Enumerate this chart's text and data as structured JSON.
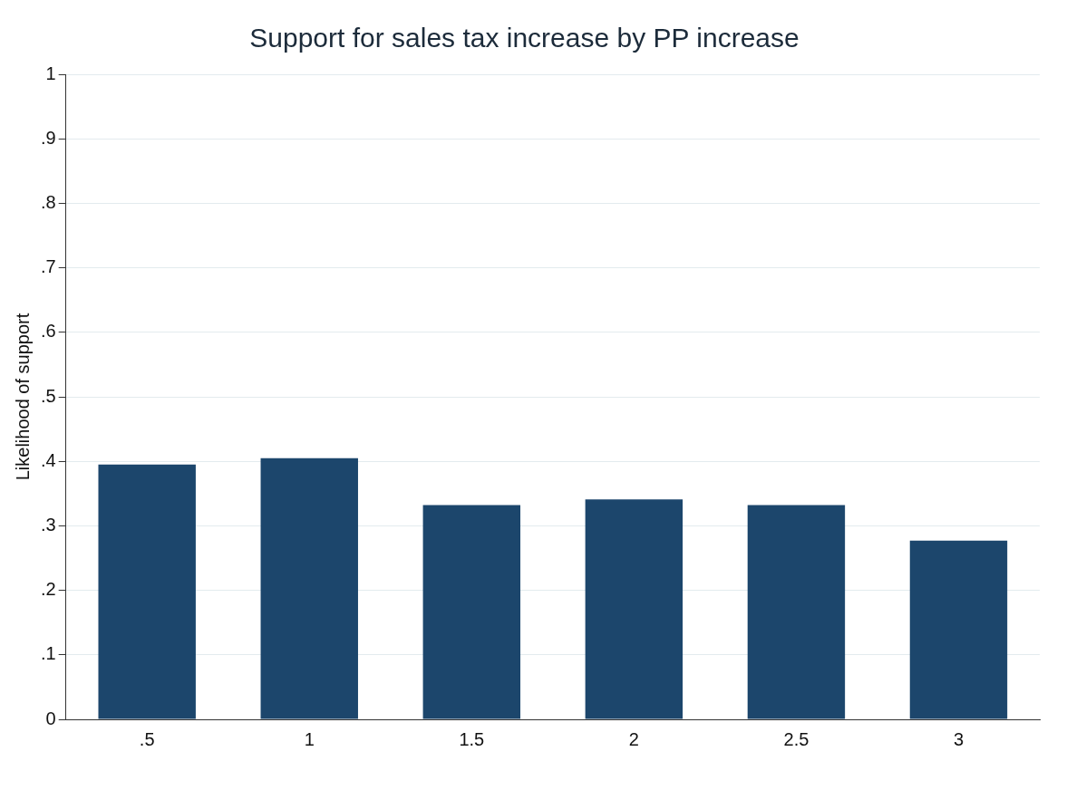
{
  "chart_data": {
    "type": "bar",
    "title": "Support for sales tax increase by PP increase",
    "ylabel": "Likelihood of support",
    "categories": [
      ".5",
      "1",
      "1.5",
      "2",
      "2.5",
      "3"
    ],
    "values": [
      0.395,
      0.405,
      0.332,
      0.341,
      0.332,
      0.277
    ],
    "color": "#1c466c",
    "ylim": [
      0,
      1
    ],
    "yticks": [
      0,
      {
        "value": 0.1,
        "label": ".1"
      },
      {
        "value": 0.2,
        "label": ".2"
      },
      {
        "value": 0.3,
        "label": ".3"
      },
      {
        "value": 0.4,
        "label": ".4"
      },
      {
        "value": 0.5,
        "label": ".5"
      },
      {
        "value": 0.6,
        "label": ".6"
      },
      {
        "value": 0.7,
        "label": ".7"
      },
      {
        "value": 0.8,
        "label": ".8"
      },
      {
        "value": 0.9,
        "label": ".9"
      },
      1
    ],
    "grid": "y",
    "legend": false
  }
}
